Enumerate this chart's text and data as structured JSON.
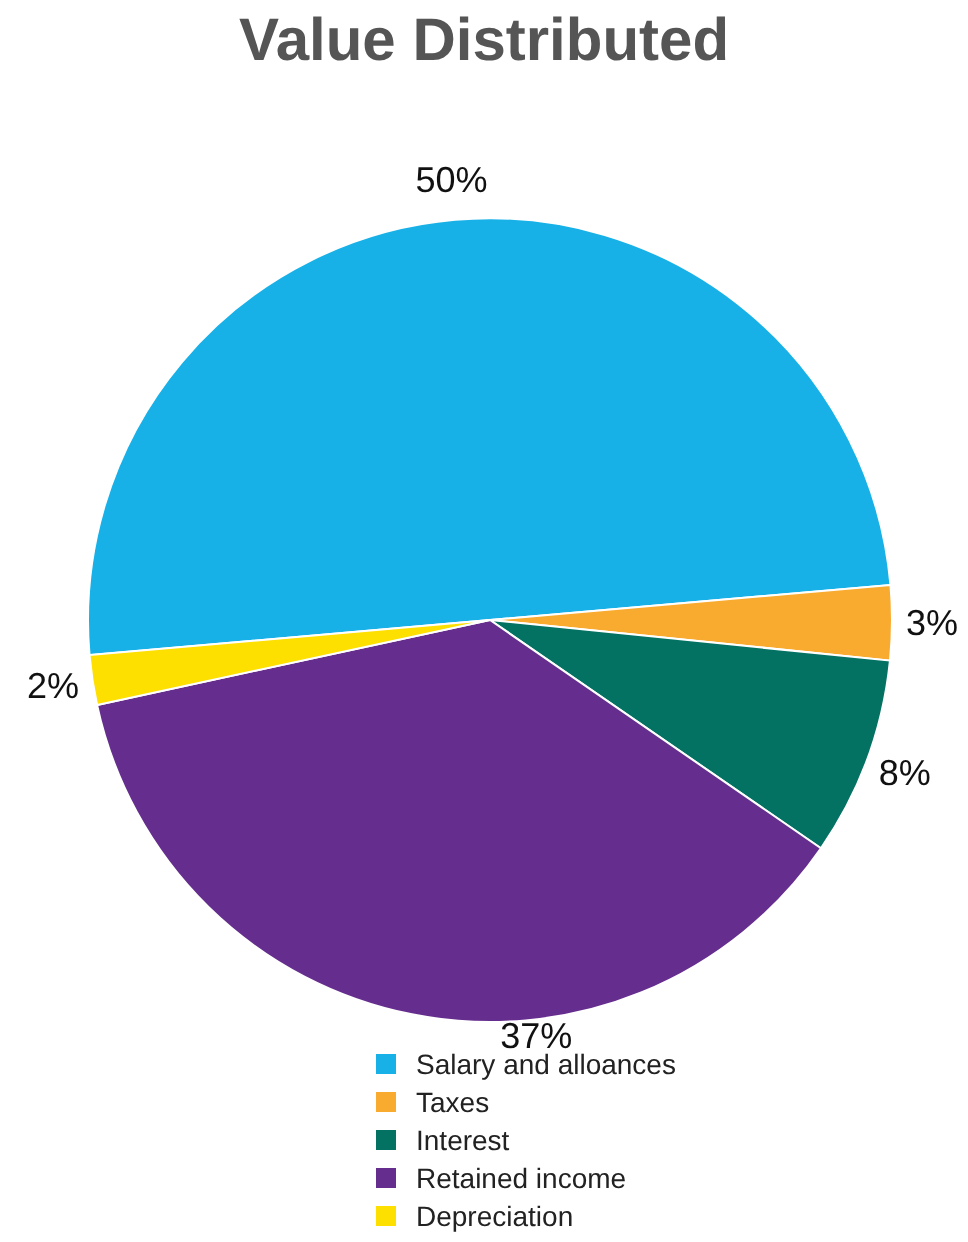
{
  "chart_data": {
    "type": "pie",
    "title": "Value Distributed",
    "categories": [
      "Salary and alloances",
      "Taxes",
      "Interest",
      "Retained income",
      "Depreciation"
    ],
    "values": [
      50,
      3,
      8,
      37,
      2
    ],
    "colors": [
      "#17b1e8",
      "#f9ab2f",
      "#037262",
      "#652d8d",
      "#fddf00"
    ],
    "value_labels": [
      "50%",
      "3%",
      "8%",
      "37%",
      "2%"
    ],
    "legend": "bottom"
  }
}
